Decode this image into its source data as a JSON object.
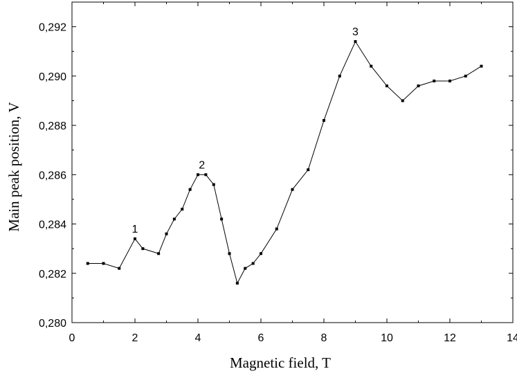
{
  "chart_data": {
    "type": "line",
    "title": "",
    "xlabel": "Magnetic field, T",
    "ylabel": "Main peak position, V",
    "xlim": [
      0,
      14
    ],
    "ylim": [
      0.28,
      0.293
    ],
    "x_ticks": [
      "0",
      "2",
      "4",
      "6",
      "8",
      "10",
      "12",
      "14"
    ],
    "y_ticks": [
      "0,280",
      "0,282",
      "0,284",
      "0,286",
      "0,288",
      "0,290",
      "0,292"
    ],
    "grid": false,
    "legend": "none",
    "series": [
      {
        "x": [
          0.5,
          1.0,
          1.5,
          2.0,
          2.25,
          2.75,
          3.0,
          3.25,
          3.5,
          3.75,
          4.0,
          4.25,
          4.5,
          4.75,
          5.0,
          5.25,
          5.5,
          5.75,
          6.0,
          6.5,
          7.0,
          7.5,
          8.0,
          8.5,
          9.0,
          9.5,
          10.0,
          10.5,
          11.0,
          11.5,
          12.0,
          12.5,
          13.0
        ],
        "y": [
          0.2824,
          0.2824,
          0.2822,
          0.2834,
          0.283,
          0.2828,
          0.2836,
          0.2842,
          0.2846,
          0.2854,
          0.286,
          0.286,
          0.2856,
          0.2842,
          0.2828,
          0.2816,
          0.2822,
          0.2824,
          0.2828,
          0.2838,
          0.2854,
          0.2862,
          0.2882,
          0.29,
          0.2914,
          0.2904,
          0.2896,
          0.289,
          0.2896,
          0.2898,
          0.2898,
          0.29,
          0.2904
        ]
      }
    ],
    "annotations": [
      {
        "text": "1",
        "x": 2.0,
        "y": 0.2834
      },
      {
        "text": "2",
        "x": 4.125,
        "y": 0.286
      },
      {
        "text": "3",
        "x": 9.0,
        "y": 0.2914
      }
    ]
  }
}
